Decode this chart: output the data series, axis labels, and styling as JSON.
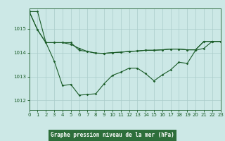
{
  "bg_plot": "#cce8e6",
  "bg_label": "#2d7a3a",
  "line_color": "#1a5c28",
  "grid_color": "#aaccca",
  "xlabel": "Graphe pression niveau de la mer (hPa)",
  "xlim": [
    0,
    23
  ],
  "ylim": [
    1011.6,
    1015.85
  ],
  "yticks": [
    1012,
    1013,
    1014,
    1015
  ],
  "xticks": [
    0,
    1,
    2,
    3,
    4,
    5,
    6,
    7,
    8,
    9,
    10,
    11,
    12,
    13,
    14,
    15,
    16,
    17,
    18,
    19,
    20,
    21,
    22,
    23
  ],
  "line1_y": [
    1015.72,
    1014.95,
    1014.42,
    1013.65,
    1012.62,
    1012.67,
    1012.22,
    1012.25,
    1012.28,
    1012.7,
    1013.05,
    1013.18,
    1013.35,
    1013.35,
    1013.12,
    1012.82,
    1013.07,
    1013.28,
    1013.6,
    1013.55,
    1014.1,
    1014.18,
    1014.47,
    1014.47
  ],
  "line2_y": [
    1015.72,
    1015.72,
    1014.42,
    1014.42,
    1014.42,
    1014.35,
    1014.18,
    1014.05,
    1013.98,
    1013.97,
    1014.0,
    1014.02,
    1014.05,
    1014.07,
    1014.1,
    1014.1,
    1014.12,
    1014.15,
    1014.15,
    1014.12,
    1014.12,
    1014.47,
    1014.47,
    1014.47
  ],
  "line3_y": [
    1015.72,
    1014.95,
    1014.42,
    1014.42,
    1014.42,
    1014.42,
    1014.1,
    1014.05,
    1013.98,
    1013.97,
    1014.0,
    1014.02,
    1014.05,
    1014.07,
    1014.1,
    1014.1,
    1014.12,
    1014.15,
    1014.15,
    1014.12,
    1014.12,
    1014.47,
    1014.47,
    1014.47
  ],
  "tick_fontsize": 5.0,
  "label_fontsize": 5.5
}
